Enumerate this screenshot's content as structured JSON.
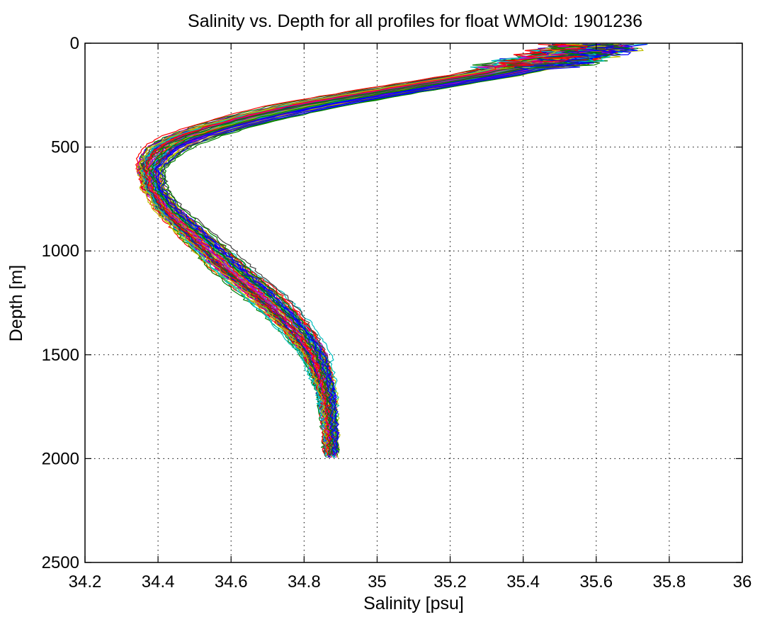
{
  "chart_data": {
    "type": "line",
    "title": "Salinity vs. Depth for all profiles for float WMOId: 1901236",
    "xlabel": "Salinity [psu]",
    "ylabel": "Depth [m]",
    "xlim": [
      34.2,
      36.0
    ],
    "ylim": [
      0,
      2500
    ],
    "y_reversed": true,
    "grid": true,
    "legend": "none",
    "xticks": [
      34.2,
      34.4,
      34.6,
      34.8,
      35.0,
      35.2,
      35.4,
      35.6,
      35.8,
      36.0
    ],
    "xtick_labels": [
      "34.2",
      "34.4",
      "34.6",
      "34.8",
      "35",
      "35.2",
      "35.4",
      "35.6",
      "35.8",
      "36"
    ],
    "yticks": [
      0,
      500,
      1000,
      1500,
      2000,
      2500
    ],
    "ytick_labels": [
      "0",
      "500",
      "1000",
      "1500",
      "2000",
      "2500"
    ],
    "series_colors": [
      "#0000ff",
      "#008000",
      "#ff0000",
      "#00bfbf",
      "#bf00bf",
      "#bfbf00",
      "#404040"
    ],
    "profile_count": 80,
    "mean_profile": [
      {
        "depth": 10,
        "salinity": 35.6
      },
      {
        "depth": 50,
        "salinity": 35.55
      },
      {
        "depth": 100,
        "salinity": 35.45
      },
      {
        "depth": 150,
        "salinity": 35.32
      },
      {
        "depth": 200,
        "salinity": 35.15
      },
      {
        "depth": 250,
        "salinity": 34.98
      },
      {
        "depth": 300,
        "salinity": 34.82
      },
      {
        "depth": 350,
        "salinity": 34.69
      },
      {
        "depth": 400,
        "salinity": 34.58
      },
      {
        "depth": 450,
        "salinity": 34.49
      },
      {
        "depth": 500,
        "salinity": 34.43
      },
      {
        "depth": 550,
        "salinity": 34.4
      },
      {
        "depth": 600,
        "salinity": 34.38
      },
      {
        "depth": 650,
        "salinity": 34.385
      },
      {
        "depth": 700,
        "salinity": 34.39
      },
      {
        "depth": 800,
        "salinity": 34.43
      },
      {
        "depth": 900,
        "salinity": 34.49
      },
      {
        "depth": 1000,
        "salinity": 34.55
      },
      {
        "depth": 1100,
        "salinity": 34.61
      },
      {
        "depth": 1200,
        "salinity": 34.68
      },
      {
        "depth": 1300,
        "salinity": 34.74
      },
      {
        "depth": 1400,
        "salinity": 34.79
      },
      {
        "depth": 1500,
        "salinity": 34.83
      },
      {
        "depth": 1600,
        "salinity": 34.85
      },
      {
        "depth": 1700,
        "salinity": 34.865
      },
      {
        "depth": 1800,
        "salinity": 34.87
      },
      {
        "depth": 1900,
        "salinity": 34.875
      },
      {
        "depth": 1990,
        "salinity": 34.875
      }
    ],
    "spread": [
      {
        "depth": 10,
        "salinity": 0.09
      },
      {
        "depth": 100,
        "salinity": 0.1
      },
      {
        "depth": 200,
        "salinity": 0.11
      },
      {
        "depth": 300,
        "salinity": 0.11
      },
      {
        "depth": 400,
        "salinity": 0.09
      },
      {
        "depth": 500,
        "salinity": 0.07
      },
      {
        "depth": 600,
        "salinity": 0.04
      },
      {
        "depth": 700,
        "salinity": 0.035
      },
      {
        "depth": 800,
        "salinity": 0.04
      },
      {
        "depth": 1000,
        "salinity": 0.055
      },
      {
        "depth": 1200,
        "salinity": 0.06
      },
      {
        "depth": 1400,
        "salinity": 0.05
      },
      {
        "depth": 1600,
        "salinity": 0.035
      },
      {
        "depth": 1800,
        "salinity": 0.025
      },
      {
        "depth": 1990,
        "salinity": 0.02
      }
    ]
  }
}
